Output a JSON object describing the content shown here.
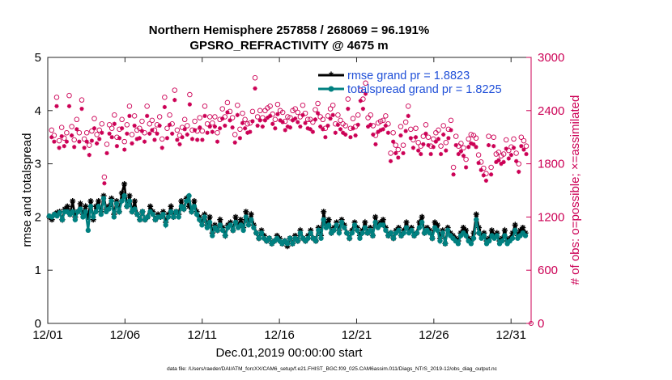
{
  "title_line1": "Northern Hemisphere 257858 / 268069 = 96.191%",
  "title_line2": "GPSRO_REFRACTIVITY @ 4675 m",
  "footer": "data file: /Users/raeder/DAI/ATM_forcXX/CAM6_setup/f.e21.FHIST_BGC.f09_025.CAM6assim.011/Diags_NTrS_2019-12/obs_diag_output.nc",
  "colors": {
    "rmse": "#000000",
    "spread": "#008080",
    "obs": "#cc0055",
    "legend_text": "#1f4fd8"
  },
  "chart_data": {
    "type": "line",
    "title": "Northern Hemisphere 257858 / 268069 = 96.191%",
    "subtitle": "GPSRO_REFRACTIVITY @ 4675 m",
    "xlabel": "Dec.01,2019 00:00:00 start",
    "ylabel": "rmse and totalspread",
    "y2label": "# of obs: o=possible; ×=assimilated",
    "xlim": [
      0,
      31.3
    ],
    "ylim": [
      0,
      5
    ],
    "y2lim": [
      0,
      3000
    ],
    "xticks": [
      0,
      5,
      10,
      15,
      20,
      25,
      30
    ],
    "xticklabels": [
      "12/01",
      "12/06",
      "12/11",
      "12/16",
      "12/21",
      "12/26",
      "12/31"
    ],
    "yticks": [
      0,
      1,
      2,
      3,
      4,
      5
    ],
    "y2ticks": [
      0,
      600,
      1200,
      1800,
      2400,
      3000
    ],
    "legend": [
      "rmse grand pr = 1.8823",
      "totalspread grand pr = 1.8225"
    ],
    "legend_location": "top-right",
    "series": [
      {
        "name": "rmse grand pr = 1.8823",
        "axis": "left",
        "marker": "asterisk",
        "values": [
          2.0,
          1.95,
          2.05,
          2.08,
          2.1,
          1.95,
          2.15,
          2.2,
          2.05,
          2.3,
          2.0,
          2.1,
          2.25,
          2.05,
          2.2,
          2.0,
          2.3,
          1.95,
          2.2,
          2.3,
          2.1,
          2.4,
          2.15,
          2.2,
          2.35,
          2.05,
          2.3,
          2.1,
          2.45,
          2.62,
          2.2,
          2.4,
          2.1,
          2.3,
          2.05,
          1.95,
          2.1,
          1.95,
          2.0,
          2.2,
          2.1,
          1.95,
          2.05,
          2.0,
          2.1,
          1.9,
          2.05,
          2.2,
          2.0,
          2.1,
          2.05,
          2.3,
          2.15,
          2.35,
          2.2,
          2.1,
          2.3,
          2.1,
          2.0,
          1.9,
          2.05,
          1.85,
          2.0,
          1.7,
          1.85,
          1.75,
          1.95,
          1.8,
          1.65,
          1.85,
          1.9,
          1.75,
          2.0,
          1.85,
          1.95,
          1.8,
          2.1,
          1.9,
          2.05,
          1.85,
          1.7,
          1.6,
          1.75,
          1.65,
          1.55,
          1.6,
          1.5,
          1.55,
          1.65,
          1.6,
          1.5,
          1.55,
          1.45,
          1.6,
          1.5,
          1.65,
          1.55,
          1.75,
          1.6,
          1.55,
          1.65,
          1.75,
          1.6,
          1.55,
          1.8,
          1.65,
          2.1,
          1.85,
          1.95,
          1.7,
          1.8,
          1.9,
          1.75,
          1.95,
          1.85,
          1.7,
          1.6,
          1.75,
          1.9,
          1.8,
          1.65,
          1.75,
          1.9,
          1.7,
          1.8,
          1.65,
          2.0,
          1.85,
          1.9,
          1.95,
          1.8,
          1.65,
          1.7,
          1.6,
          1.75,
          1.8,
          1.65,
          1.75,
          1.9,
          1.75,
          1.8,
          1.65,
          1.7,
          1.9,
          2.0,
          1.7,
          1.8,
          1.75,
          1.6,
          1.9,
          1.85,
          1.6,
          1.75,
          1.5,
          1.8,
          1.7,
          1.65,
          1.6,
          1.55,
          1.7,
          1.8,
          1.75,
          1.6,
          1.55,
          1.7,
          2.05,
          1.8,
          1.65,
          1.7,
          1.55,
          1.6,
          1.75,
          1.65,
          1.7,
          1.55,
          1.6,
          1.75,
          1.55,
          1.6,
          1.7,
          1.85,
          1.65,
          1.75,
          1.8,
          1.7
        ]
      },
      {
        "name": "totalspread grand pr = 1.8225",
        "axis": "left",
        "marker": "circle",
        "values": [
          2.02,
          2.0,
          2.05,
          2.02,
          2.08,
          1.95,
          2.1,
          2.1,
          2.05,
          2.1,
          1.95,
          2.1,
          2.15,
          2.0,
          2.1,
          1.75,
          2.2,
          2.0,
          2.1,
          2.2,
          2.05,
          2.35,
          2.1,
          2.15,
          2.3,
          2.0,
          2.25,
          2.1,
          2.3,
          2.4,
          2.2,
          2.3,
          2.1,
          2.15,
          2.05,
          1.95,
          2.1,
          1.95,
          2.0,
          2.1,
          2.05,
          1.95,
          2.0,
          2.0,
          2.05,
          1.85,
          2.0,
          2.1,
          2.0,
          2.1,
          2.0,
          2.2,
          2.15,
          2.3,
          2.4,
          2.1,
          2.2,
          2.05,
          1.95,
          1.85,
          2.0,
          1.8,
          1.9,
          1.65,
          1.8,
          1.75,
          1.85,
          1.75,
          1.65,
          1.8,
          1.85,
          1.75,
          1.9,
          1.8,
          1.85,
          1.75,
          2.0,
          1.85,
          1.95,
          1.8,
          1.7,
          1.6,
          1.7,
          1.6,
          1.55,
          1.6,
          1.5,
          1.55,
          1.6,
          1.55,
          1.5,
          1.55,
          1.5,
          1.6,
          1.5,
          1.6,
          1.55,
          1.7,
          1.6,
          1.55,
          1.6,
          1.7,
          1.6,
          1.55,
          1.75,
          1.6,
          1.95,
          1.8,
          1.85,
          1.7,
          1.75,
          1.85,
          1.7,
          1.9,
          1.8,
          1.7,
          1.6,
          1.7,
          1.85,
          1.75,
          1.6,
          1.7,
          1.8,
          1.7,
          1.75,
          1.65,
          1.9,
          1.8,
          1.85,
          1.85,
          1.75,
          1.65,
          1.7,
          1.6,
          1.7,
          1.75,
          1.65,
          1.7,
          1.8,
          1.7,
          1.75,
          1.65,
          1.7,
          1.8,
          1.9,
          1.7,
          1.75,
          1.7,
          1.6,
          1.8,
          1.75,
          1.55,
          1.7,
          1.5,
          1.75,
          1.65,
          1.6,
          1.55,
          1.5,
          1.65,
          1.7,
          1.65,
          1.55,
          1.5,
          1.6,
          1.95,
          1.7,
          1.6,
          1.65,
          1.5,
          1.55,
          1.65,
          1.6,
          1.65,
          1.5,
          1.55,
          1.65,
          1.5,
          1.55,
          1.6,
          1.75,
          1.6,
          1.65,
          1.7,
          1.65
        ]
      },
      {
        "name": "possible",
        "axis": "right",
        "marker": "circle-open",
        "values": [
          2180,
          2120,
          2550,
          2060,
          2210,
          2090,
          2150,
          2570,
          2220,
          2070,
          2300,
          2150,
          2520,
          2080,
          2150,
          2010,
          2170,
          2310,
          2130,
          2180,
          2250,
          1650,
          2020,
          2240,
          2200,
          2350,
          2100,
          2190,
          2300,
          2050,
          2240,
          2450,
          2130,
          2340,
          2180,
          2200,
          2280,
          2150,
          2450,
          2250,
          2290,
          2180,
          2240,
          2330,
          2080,
          2550,
          2200,
          2350,
          2250,
          2630,
          2180,
          2120,
          2210,
          2300,
          2230,
          2580,
          2180,
          2280,
          2170,
          2320,
          2170,
          2450,
          2250,
          2330,
          2260,
          2330,
          2150,
          2300,
          2420,
          2330,
          2490,
          2390,
          2320,
          2130,
          2460,
          2190,
          2370,
          2300,
          2250,
          2260,
          2390,
          2770,
          2330,
          2400,
          2320,
          2400,
          2430,
          2450,
          2360,
          2300,
          2470,
          2400,
          2380,
          2280,
          2330,
          2320,
          2400,
          2420,
          2380,
          2330,
          2460,
          2370,
          2300,
          2300,
          2270,
          2410,
          2480,
          2330,
          2300,
          2200,
          2340,
          2420,
          2460,
          2250,
          2350,
          2290,
          2250,
          2230,
          2530,
          2200,
          2310,
          2220,
          2350,
          2630,
          2530,
          2710,
          2320,
          2350,
          2230,
          2120,
          2260,
          2280,
          2290,
          2340,
          2250,
          1920,
          2150,
          2010,
          1960,
          2220,
          2010,
          2270,
          2450,
          2190,
          2070,
          2200,
          2040,
          2000,
          2110,
          2240,
          2100,
          2000,
          2080,
          2150,
          2180,
          2000,
          2230,
          2040,
          2190,
          2290,
          1760,
          2110,
          2000,
          2030,
          1980,
          1850,
          2080,
          2130,
          2120,
          2090,
          1900,
          1820,
          1750,
          1690,
          2110,
          1760,
          2100,
          1910,
          1930,
          1890,
          1910,
          2070,
          1950,
          1990,
          2080,
          1920,
          1800,
          2100,
          2060,
          2000
        ]
      },
      {
        "name": "assimilated",
        "axis": "right",
        "marker": "asterisk",
        "values": [
          2100,
          2050,
          2450,
          1980,
          2110,
          2000,
          2050,
          2450,
          2120,
          1990,
          2190,
          2050,
          2420,
          1980,
          2050,
          1900,
          2060,
          2200,
          2030,
          2080,
          2150,
          1580,
          1920,
          2140,
          2100,
          2250,
          2000,
          2090,
          2200,
          1960,
          2140,
          2340,
          2030,
          2230,
          2080,
          2090,
          2170,
          2050,
          2340,
          2140,
          2180,
          2070,
          2140,
          2230,
          1980,
          2440,
          2090,
          2240,
          2140,
          2520,
          2070,
          2020,
          2100,
          2190,
          2130,
          2470,
          2080,
          2180,
          2070,
          2210,
          2070,
          2340,
          2150,
          2220,
          2160,
          2220,
          2050,
          2200,
          2310,
          2230,
          2380,
          2290,
          2210,
          2040,
          2350,
          2090,
          2260,
          2200,
          2150,
          2160,
          2280,
          2650,
          2230,
          2290,
          2220,
          2290,
          2320,
          2340,
          2250,
          2200,
          2360,
          2290,
          2270,
          2180,
          2220,
          2210,
          2290,
          2310,
          2270,
          2220,
          2350,
          2260,
          2200,
          2190,
          2160,
          2300,
          2370,
          2220,
          2190,
          2100,
          2230,
          2310,
          2350,
          2150,
          2240,
          2190,
          2150,
          2130,
          2420,
          2100,
          2200,
          2120,
          2240,
          2510,
          2420,
          2590,
          2220,
          2240,
          2130,
          2020,
          2160,
          2180,
          2190,
          2230,
          2150,
          1830,
          2050,
          1920,
          1870,
          2120,
          1920,
          2170,
          2340,
          2090,
          1980,
          2100,
          1950,
          1910,
          2020,
          2140,
          2010,
          1910,
          1990,
          2050,
          2080,
          1910,
          2130,
          1950,
          2090,
          2180,
          1680,
          2010,
          1910,
          1940,
          1890,
          1760,
          1990,
          2030,
          2020,
          1990,
          1810,
          1730,
          1670,
          1610,
          2010,
          1680,
          2000,
          1820,
          1840,
          1800,
          1820,
          1970,
          1860,
          1900,
          1980,
          1830,
          1710,
          2000,
          1960,
          1910
        ]
      }
    ]
  }
}
